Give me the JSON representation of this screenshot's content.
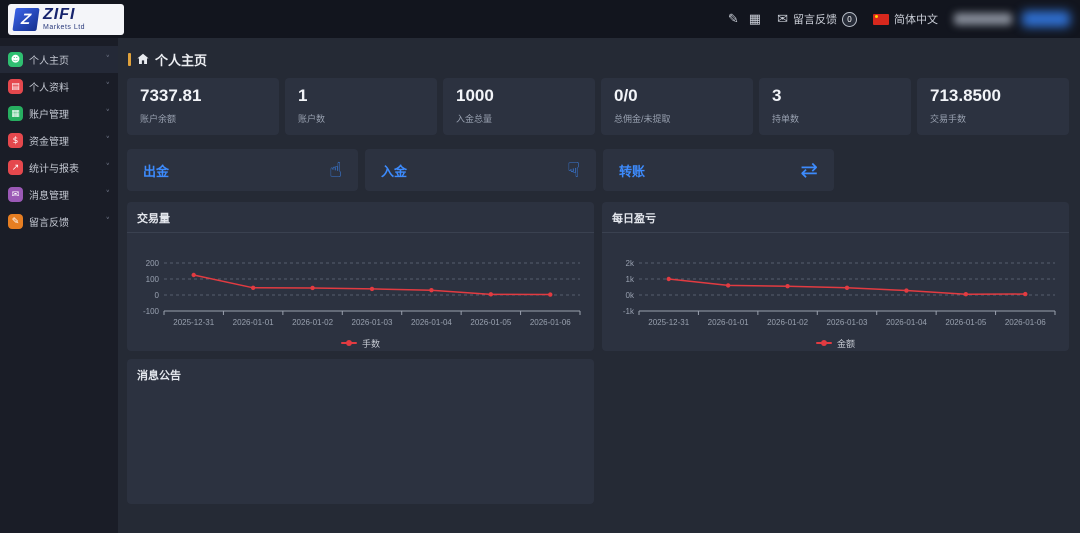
{
  "topbar": {
    "logo": {
      "brand": "ZIFI",
      "subtitle": "Markets Ltd"
    },
    "feedback_label": "留言反馈",
    "feedback_badge": "0",
    "language_label": "简体中文"
  },
  "sidebar": {
    "items": [
      {
        "label": "个人主页",
        "icon": "user-icon",
        "color": "#2fbf71",
        "active": true
      },
      {
        "label": "个人资料",
        "icon": "id-card-icon",
        "color": "#e5484d",
        "active": false
      },
      {
        "label": "账户管理",
        "icon": "bank-icon",
        "color": "#27ae60",
        "active": false
      },
      {
        "label": "资金管理",
        "icon": "dollar-icon",
        "color": "#e5484d",
        "active": false
      },
      {
        "label": "统计与报表",
        "icon": "chart-line-icon",
        "color": "#e5484d",
        "active": false
      },
      {
        "label": "消息管理",
        "icon": "chat-icon",
        "color": "#9b59b6",
        "active": false
      },
      {
        "label": "留言反馈",
        "icon": "pen-icon",
        "color": "#e67e22",
        "active": false
      }
    ]
  },
  "page": {
    "title": "个人主页"
  },
  "stats": [
    {
      "value": "7337.81",
      "label": "账户余额"
    },
    {
      "value": "1",
      "label": "账户数"
    },
    {
      "value": "1000",
      "label": "入金总量"
    },
    {
      "value": "0/0",
      "label": "总佣金/未提取"
    },
    {
      "value": "3",
      "label": "持单数"
    },
    {
      "value": "713.8500",
      "label": "交易手数"
    }
  ],
  "quick_actions": [
    {
      "label": "出金",
      "icon": "hand-point-up-icon"
    },
    {
      "label": "入金",
      "icon": "hand-point-down-icon"
    },
    {
      "label": "转账",
      "icon": "shuffle-icon"
    }
  ],
  "announcement": {
    "title": "消息公告"
  },
  "colors": {
    "accent": "#3d8bfd",
    "line": "#e23b41",
    "title_bar": "#e0a23c"
  },
  "chart_data": [
    {
      "type": "line",
      "title": "交易量",
      "categories": [
        "2025-12-31",
        "2026-01-01",
        "2026-01-02",
        "2026-01-03",
        "2026-01-04",
        "2026-01-05",
        "2026-01-06"
      ],
      "series": [
        {
          "name": "手数",
          "color": "#e23b41",
          "values": [
            125,
            45,
            44,
            38,
            30,
            4,
            3
          ]
        }
      ],
      "ylim": [
        -100,
        200
      ],
      "yticks": [
        {
          "value": 200,
          "label": "200"
        },
        {
          "value": 100,
          "label": "100"
        },
        {
          "value": 0,
          "label": "0"
        },
        {
          "value": -100,
          "label": "-100"
        }
      ],
      "grid": true,
      "legend_position": "bottom"
    },
    {
      "type": "line",
      "title": "每日盈亏",
      "categories": [
        "2025-12-31",
        "2026-01-01",
        "2026-01-02",
        "2026-01-03",
        "2026-01-04",
        "2026-01-05",
        "2026-01-06"
      ],
      "series": [
        {
          "name": "金额",
          "color": "#e23b41",
          "values": [
            1000,
            600,
            550,
            450,
            280,
            50,
            60
          ]
        }
      ],
      "ylim": [
        -1000,
        2000
      ],
      "yticks": [
        {
          "value": 2000,
          "label": "2k"
        },
        {
          "value": 1000,
          "label": "1k"
        },
        {
          "value": 0,
          "label": "0k"
        },
        {
          "value": -1000,
          "label": "-1k"
        }
      ],
      "grid": true,
      "legend_position": "bottom"
    }
  ]
}
